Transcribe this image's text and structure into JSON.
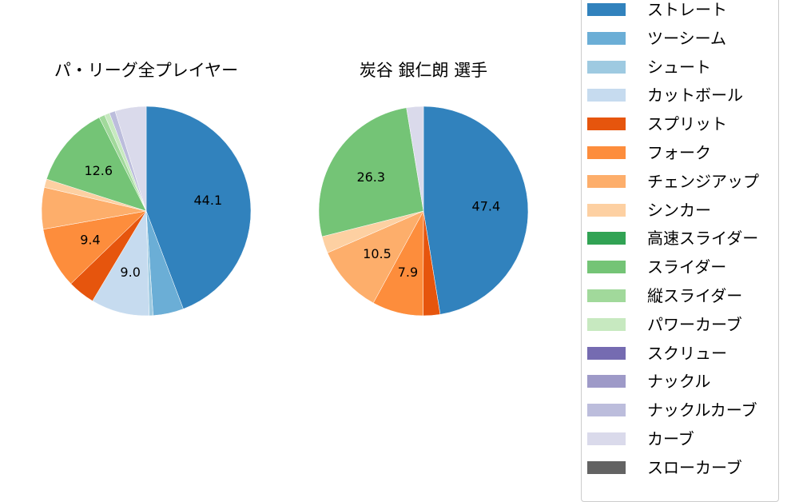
{
  "chart_data": [
    {
      "type": "pie",
      "title": "パ・リーグ全プレイヤー",
      "start_angle_deg": 90,
      "direction": "clockwise",
      "labels": [
        "ストレート",
        "ツーシーム",
        "シュート",
        "カットボール",
        "スプリット",
        "フォーク",
        "チェンジアップ",
        "シンカー",
        "スライダー",
        "縦スライダー",
        "パワーカーブ",
        "ナックルカーブ",
        "カーブ"
      ],
      "values": [
        44.1,
        4.7,
        0.6,
        9.0,
        4.2,
        9.4,
        6.4,
        1.3,
        12.6,
        0.9,
        0.8,
        0.9,
        4.8
      ],
      "shown_value_labels": {
        "ストレート": "44.1",
        "カットボール": "9.0",
        "フォーク": "9.4",
        "スライダー": "12.6"
      }
    },
    {
      "type": "pie",
      "title": "炭谷 銀仁朗  選手",
      "start_angle_deg": 90,
      "direction": "clockwise",
      "labels": [
        "ストレート",
        "スプリット",
        "フォーク",
        "チェンジアップ",
        "シンカー",
        "スライダー",
        "カーブ"
      ],
      "values": [
        47.4,
        2.6,
        7.9,
        10.5,
        2.6,
        26.3,
        2.6
      ],
      "shown_value_labels": {
        "ストレート": "47.4",
        "フォーク": "7.9",
        "チェンジアップ": "10.5",
        "スライダー": "26.3"
      }
    }
  ],
  "titles": {
    "left": "パ・リーグ全プレイヤー",
    "right": "炭谷 銀仁朗  選手"
  },
  "legend": [
    {
      "label": "ストレート",
      "color": "#3182bd"
    },
    {
      "label": "ツーシーム",
      "color": "#6baed6"
    },
    {
      "label": "シュート",
      "color": "#9ecae1"
    },
    {
      "label": "カットボール",
      "color": "#c6dbef"
    },
    {
      "label": "スプリット",
      "color": "#e6550d"
    },
    {
      "label": "フォーク",
      "color": "#fd8d3c"
    },
    {
      "label": "チェンジアップ",
      "color": "#fdae6b"
    },
    {
      "label": "シンカー",
      "color": "#fdd0a2"
    },
    {
      "label": "高速スライダー",
      "color": "#31a354"
    },
    {
      "label": "スライダー",
      "color": "#74c476"
    },
    {
      "label": "縦スライダー",
      "color": "#a1d99b"
    },
    {
      "label": "パワーカーブ",
      "color": "#c7e9c0"
    },
    {
      "label": "スクリュー",
      "color": "#756bb1"
    },
    {
      "label": "ナックル",
      "color": "#9e9ac8"
    },
    {
      "label": "ナックルカーブ",
      "color": "#bcbddc"
    },
    {
      "label": "カーブ",
      "color": "#dadaeb"
    },
    {
      "label": "スローカーブ",
      "color": "#636363"
    }
  ]
}
